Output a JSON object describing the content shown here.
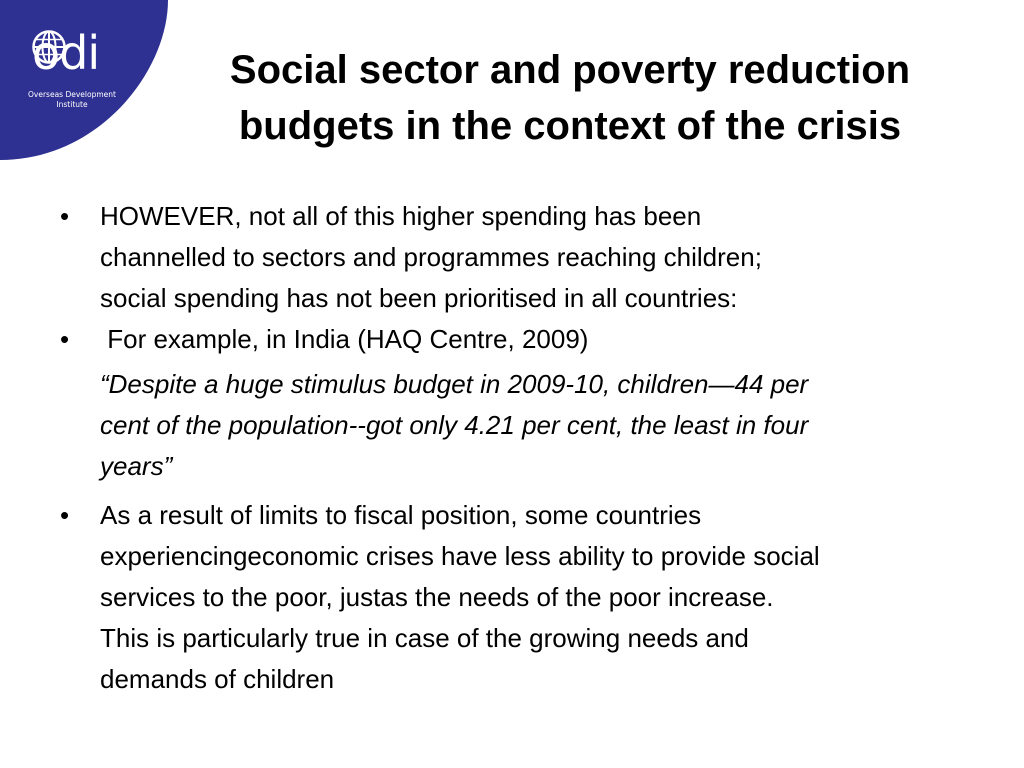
{
  "logo": {
    "wordmark": "odi",
    "subtitle_line1": "Overseas Development",
    "subtitle_line2": "Institute",
    "icon": "globe-icon",
    "bg_color": "#2e3192"
  },
  "slide": {
    "title_line1": "Social sector and poverty reduction",
    "title_line2": "budgets in the context of the crisis",
    "bullet_glyph": "•",
    "bullets": [
      {
        "lines": [
          "HOWEVER, not all of this higher spending has been",
          "channelled to sectors and programmes reaching children;",
          "social spending has not been prioritised in all countries:"
        ]
      },
      {
        "lines": [
          " For example, in India (HAQ Centre, 2009)"
        ]
      },
      {
        "lines": [
          "As a result of limits to fiscal position, some countries",
          "experiencingeconomic crises have less ability to provide social",
          "services to the poor, justas the needs of the poor increase.",
          "This is particularly true in case of the growing needs and",
          "demands of children"
        ]
      }
    ],
    "quote_lines": [
      "“Despite a huge stimulus budget in 2009-10, children—44 per",
      "cent of the population--got only 4.21 per cent, the least in four",
      "years”"
    ]
  }
}
